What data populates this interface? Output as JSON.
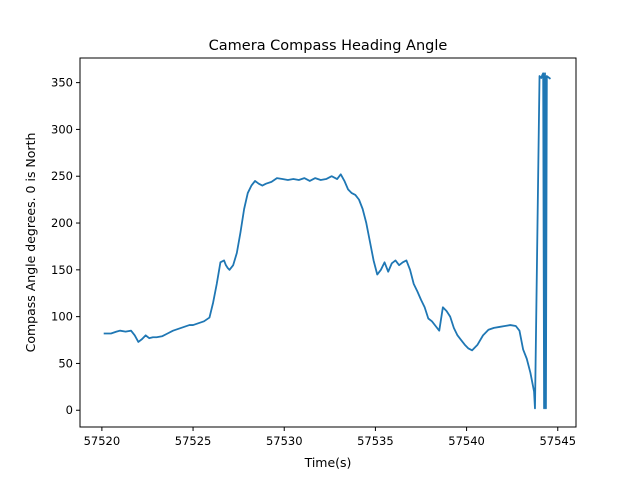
{
  "chart_data": {
    "type": "line",
    "title": "Camera Compass Heading Angle",
    "xlabel": "Time(s)",
    "ylabel": "Compass Angle degrees. 0 is North",
    "xlim": [
      57518.8,
      57546.0
    ],
    "ylim": [
      -17.9,
      376.3
    ],
    "xticks": [
      57520,
      57525,
      57530,
      57535,
      57540,
      57545
    ],
    "yticks": [
      0,
      50,
      100,
      150,
      200,
      250,
      300,
      350
    ],
    "grid": false,
    "line_color": "#1f77b4",
    "series": [
      {
        "x": [
          57520.1,
          57520.5,
          57520.8,
          57521.0,
          57521.3,
          57521.6,
          57521.8,
          57522.0,
          57522.2,
          57522.4,
          57522.6,
          57522.8,
          57523.0,
          57523.3,
          57523.6,
          57523.9,
          57524.2,
          57524.5,
          57524.8,
          57525.0,
          57525.3,
          57525.6,
          57525.9,
          57526.1,
          57526.3,
          57526.5,
          57526.7,
          57526.8,
          57526.9,
          57527.0,
          57527.2,
          57527.4,
          57527.6,
          57527.8,
          57528.0,
          57528.2,
          57528.4,
          57528.6,
          57528.8,
          57529.0,
          57529.3,
          57529.6,
          57529.9,
          57530.2,
          57530.5,
          57530.8,
          57531.1,
          57531.4,
          57531.7,
          57532.0,
          57532.3,
          57532.6,
          57532.9,
          57533.1,
          57533.3,
          57533.5,
          57533.7,
          57533.9,
          57534.1,
          57534.3,
          57534.5,
          57534.7,
          57534.9,
          57535.1,
          57535.3,
          57535.5,
          57535.7,
          57535.9,
          57536.1,
          57536.3,
          57536.5,
          57536.7,
          57536.9,
          57537.1,
          57537.3,
          57537.5,
          57537.7,
          57537.9,
          57538.1,
          57538.3,
          57538.5,
          57538.7,
          57538.9,
          57539.1,
          57539.3,
          57539.5,
          57539.7,
          57539.9,
          57540.1,
          57540.3,
          57540.6,
          57540.9,
          57541.2,
          57541.5,
          57541.8,
          57542.1,
          57542.4,
          57542.7,
          57542.9,
          57543.1,
          57543.3,
          57543.5,
          57543.7,
          57543.75,
          57544.0,
          57544.1,
          57544.15,
          57544.2,
          57544.25,
          57544.3,
          57544.35,
          57544.4,
          57544.6
        ],
        "y": [
          82,
          82,
          84,
          85,
          84,
          85,
          80,
          73,
          76,
          80,
          77,
          78,
          78,
          79,
          82,
          85,
          87,
          89,
          91,
          91,
          93,
          95,
          99,
          115,
          135,
          158,
          160,
          155,
          152,
          150,
          155,
          168,
          190,
          215,
          232,
          240,
          245,
          242,
          240,
          242,
          244,
          248,
          247,
          246,
          247,
          246,
          248,
          245,
          248,
          246,
          247,
          250,
          247,
          252,
          245,
          236,
          232,
          230,
          225,
          215,
          200,
          180,
          160,
          145,
          150,
          158,
          148,
          157,
          160,
          155,
          158,
          160,
          150,
          135,
          127,
          118,
          110,
          98,
          95,
          90,
          85,
          110,
          106,
          100,
          88,
          80,
          75,
          70,
          66,
          64,
          70,
          80,
          86,
          88,
          89,
          90,
          91,
          90,
          85,
          65,
          55,
          40,
          20,
          2,
          357,
          355,
          358,
          360,
          2,
          360,
          2,
          357,
          354
        ]
      }
    ]
  }
}
